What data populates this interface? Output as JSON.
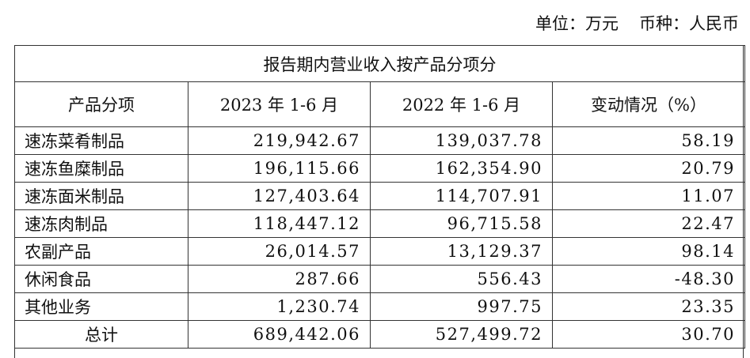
{
  "header": {
    "unit": "单位：万元",
    "currency": "币种：人民币"
  },
  "table": {
    "title": "报告期内营业收入按产品分项分",
    "columns": [
      "产品分项",
      "2023 年 1-6 月",
      "2022 年 1-6 月",
      "变动情况（%）"
    ],
    "rows": [
      [
        "速冻菜肴制品",
        "219,942.67",
        "139,037.78",
        "58.19"
      ],
      [
        "速冻鱼糜制品",
        "196,115.66",
        "162,354.90",
        "20.79"
      ],
      [
        "速冻面米制品",
        "127,403.64",
        "114,707.91",
        "11.07"
      ],
      [
        "速冻肉制品",
        "118,447.12",
        "96,715.58",
        "22.47"
      ],
      [
        "农副产品",
        "26,014.57",
        "13,129.37",
        "98.14"
      ],
      [
        "休闲食品",
        "287.66",
        "556.43",
        "-48.30"
      ],
      [
        "其他业务",
        "1,230.74",
        "997.75",
        "23.35"
      ],
      [
        "总计",
        "689,442.06",
        "527,499.72",
        "30.70"
      ]
    ]
  }
}
